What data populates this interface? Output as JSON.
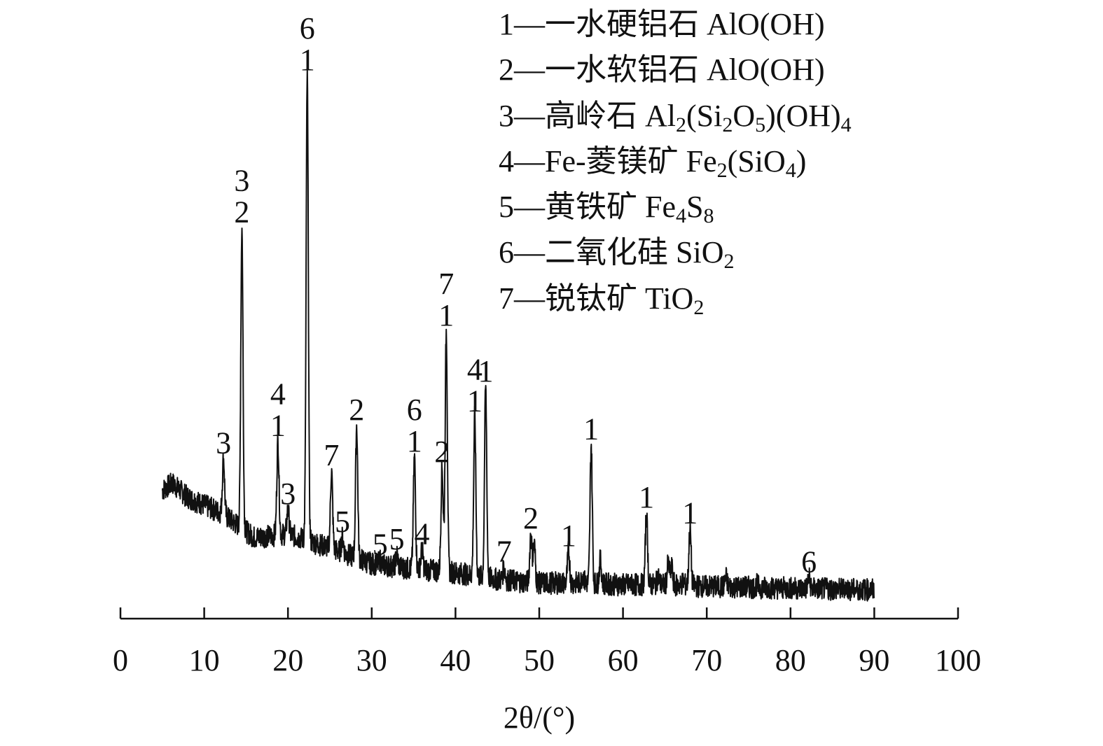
{
  "chart_data": {
    "type": "line",
    "title": "",
    "xlabel": "2θ/(°)",
    "ylabel": "",
    "xlim": [
      0,
      100
    ],
    "xticks": [
      0,
      10,
      20,
      30,
      40,
      50,
      60,
      70,
      80,
      90,
      100
    ],
    "y_axis_shown": false,
    "grid": false,
    "legend_position": "top-right",
    "line_color": "#111111",
    "series": [
      {
        "x_range": [
          5,
          90
        ],
        "baseline": [
          [
            5,
            6.3
          ],
          [
            6.2,
            6.7
          ],
          [
            8,
            5.9
          ],
          [
            12,
            5.0
          ],
          [
            16,
            3.6
          ],
          [
            20,
            3.8
          ],
          [
            25,
            3.0
          ],
          [
            30,
            2.1
          ],
          [
            35,
            1.8
          ],
          [
            40,
            1.6
          ],
          [
            45,
            1.2
          ],
          [
            50,
            1.0
          ],
          [
            55,
            1.0
          ],
          [
            60,
            0.9
          ],
          [
            65,
            0.9
          ],
          [
            70,
            0.8
          ],
          [
            80,
            0.7
          ],
          [
            90,
            0.6
          ]
        ],
        "peaks": [
          {
            "x": 12.3,
            "y": 8.1,
            "labels": [
              "3"
            ]
          },
          {
            "x": 14.5,
            "y": 21.3,
            "labels": [
              "3",
              "2"
            ]
          },
          {
            "x": 18.8,
            "y": 9.1,
            "labels": [
              "4",
              "1"
            ]
          },
          {
            "x": 20.0,
            "y": 5.2,
            "labels": [
              "3"
            ]
          },
          {
            "x": 22.3,
            "y": 30.0,
            "labels": [
              "6",
              "1"
            ]
          },
          {
            "x": 25.2,
            "y": 7.4,
            "labels": [
              "7"
            ]
          },
          {
            "x": 26.5,
            "y": 3.6,
            "labels": [
              "5"
            ]
          },
          {
            "x": 28.2,
            "y": 10.0,
            "labels": [
              "2"
            ]
          },
          {
            "x": 31.0,
            "y": 2.3,
            "labels": [
              "5"
            ]
          },
          {
            "x": 33.0,
            "y": 2.6,
            "labels": [
              "5"
            ]
          },
          {
            "x": 36.0,
            "y": 2.9,
            "labels": [
              "4"
            ]
          },
          {
            "x": 35.1,
            "y": 8.2,
            "labels": [
              "6",
              "1"
            ]
          },
          {
            "x": 38.4,
            "y": 7.6,
            "labels": [
              "2"
            ]
          },
          {
            "x": 38.9,
            "y": 15.4,
            "labels": [
              "7",
              "1"
            ]
          },
          {
            "x": 42.3,
            "y": 10.5,
            "labels": [
              "4",
              "1"
            ]
          },
          {
            "x": 43.6,
            "y": 12.2,
            "labels": [
              "1"
            ]
          },
          {
            "x": 45.8,
            "y": 1.9,
            "labels": [
              "7"
            ]
          },
          {
            "x": 49.0,
            "y": 3.8,
            "labels": [
              "2"
            ]
          },
          {
            "x": 53.5,
            "y": 2.8,
            "labels": [
              "1"
            ]
          },
          {
            "x": 56.2,
            "y": 8.9,
            "labels": [
              "1"
            ]
          },
          {
            "x": 62.8,
            "y": 5.0,
            "labels": [
              "1"
            ]
          },
          {
            "x": 68.0,
            "y": 4.1,
            "labels": [
              "1"
            ]
          },
          {
            "x": 82.2,
            "y": 1.3,
            "labels": [
              "6"
            ]
          }
        ],
        "minor_peaks": [
          [
            49.4,
            3.2
          ],
          [
            55.2,
            1.5
          ],
          [
            57.3,
            2.3
          ],
          [
            64.2,
            1.4
          ],
          [
            65.4,
            2.1
          ],
          [
            65.8,
            1.9
          ],
          [
            67.2,
            1.1
          ],
          [
            72.3,
            1.3
          ],
          [
            76.0,
            0.9
          ],
          [
            84.0,
            0.6
          ],
          [
            86.5,
            0.8
          ]
        ]
      }
    ],
    "legend": [
      {
        "num": "1",
        "dash": "—",
        "name": "一水硬铝石",
        "formula": [
          [
            "AlO(OH)",
            ""
          ]
        ]
      },
      {
        "num": "2",
        "dash": "—",
        "name": "一水软铝石",
        "formula": [
          [
            "AlO(OH)",
            ""
          ]
        ]
      },
      {
        "num": "3",
        "dash": "—",
        "name": "高岭石",
        "formula": [
          [
            "Al",
            ""
          ],
          [
            "2",
            "sub"
          ],
          [
            "(Si",
            ""
          ],
          [
            "2",
            "sub"
          ],
          [
            "O",
            ""
          ],
          [
            "5",
            "sub"
          ],
          [
            ")(OH)",
            ""
          ],
          [
            "4",
            "sub"
          ]
        ]
      },
      {
        "num": "4",
        "dash": "—",
        "name": "Fe-菱镁矿",
        "formula": [
          [
            "Fe",
            ""
          ],
          [
            "2",
            "sub"
          ],
          [
            "(SiO",
            ""
          ],
          [
            "4",
            "sub"
          ],
          [
            ")",
            ""
          ]
        ]
      },
      {
        "num": "5",
        "dash": "—",
        "name": "黄铁矿",
        "formula": [
          [
            "Fe",
            ""
          ],
          [
            "4",
            "sub"
          ],
          [
            "S",
            ""
          ],
          [
            "8",
            "sub"
          ]
        ]
      },
      {
        "num": "6",
        "dash": "—",
        "name": "二氧化硅",
        "formula": [
          [
            "SiO",
            ""
          ],
          [
            "2",
            "sub"
          ]
        ]
      },
      {
        "num": "7",
        "dash": "—",
        "name": "锐钛矿",
        "formula": [
          [
            "TiO",
            ""
          ],
          [
            "2",
            "sub"
          ]
        ]
      }
    ]
  }
}
